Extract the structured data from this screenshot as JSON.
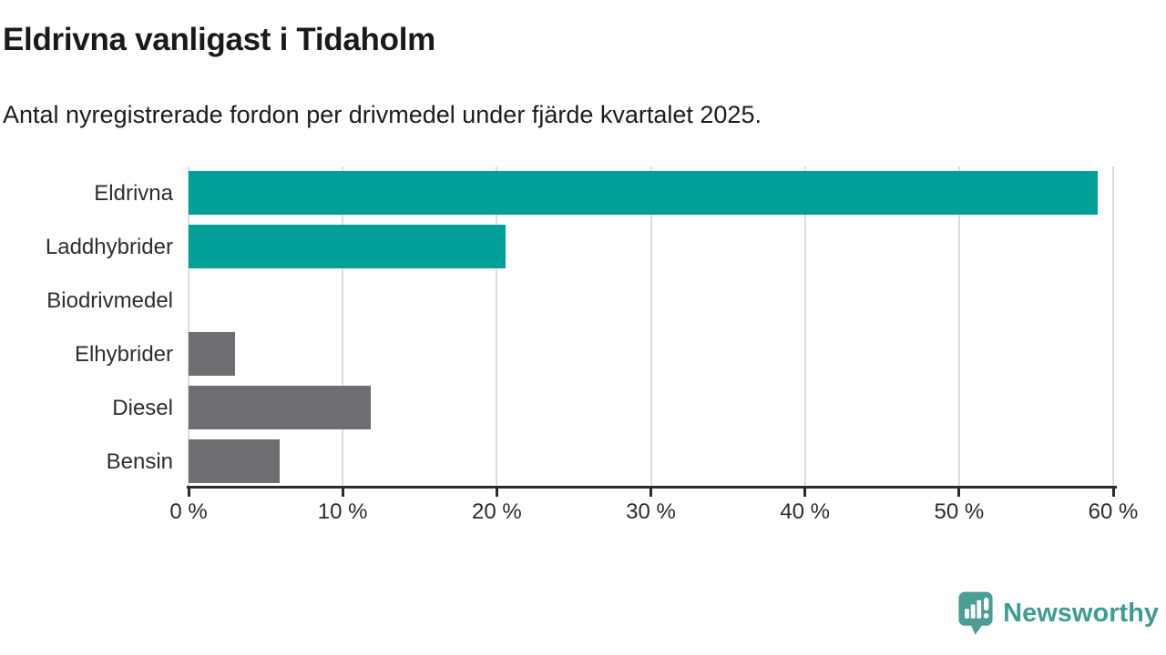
{
  "header": {
    "title": "Eldrivna vanligast i Tidaholm",
    "subtitle": "Antal nyregistrerade fordon per drivmedel under fjärde kvartalet 2025."
  },
  "chart_data": {
    "type": "bar",
    "orientation": "horizontal",
    "title": "Eldrivna vanligast i Tidaholm",
    "subtitle": "Antal nyregistrerade fordon per drivmedel under fjärde kvartalet 2025.",
    "categories": [
      "Eldrivna",
      "Laddhybrider",
      "Biodrivmedel",
      "Elhybrider",
      "Diesel",
      "Bensin"
    ],
    "values": [
      59,
      20.6,
      0,
      3,
      11.8,
      5.9
    ],
    "unit": "%",
    "bar_colors": [
      "#00a099",
      "#00a099",
      "#6d6d72",
      "#6d6d72",
      "#6d6d72",
      "#6d6d72"
    ],
    "xlabel": "",
    "ylabel": "",
    "xlim": [
      0,
      60
    ],
    "x_ticks": [
      0,
      10,
      20,
      30,
      40,
      50,
      60
    ],
    "x_tick_labels": [
      "0 %",
      "10 %",
      "20 %",
      "30 %",
      "40 %",
      "50 %",
      "60 %"
    ],
    "grid": true,
    "legend": false
  },
  "branding": {
    "name": "Newsworthy",
    "logo_icon": "bar-chart-speech-bubble-icon",
    "text_color": "#3f9c94",
    "icon_color": "#4a9e96"
  },
  "colors": {
    "accent_teal": "#00a099",
    "neutral_gray": "#6d6d72",
    "gridline": "#dcdcdc",
    "axis": "#2b2b2b",
    "text": "#1a1a1a",
    "background": "#ffffff"
  }
}
